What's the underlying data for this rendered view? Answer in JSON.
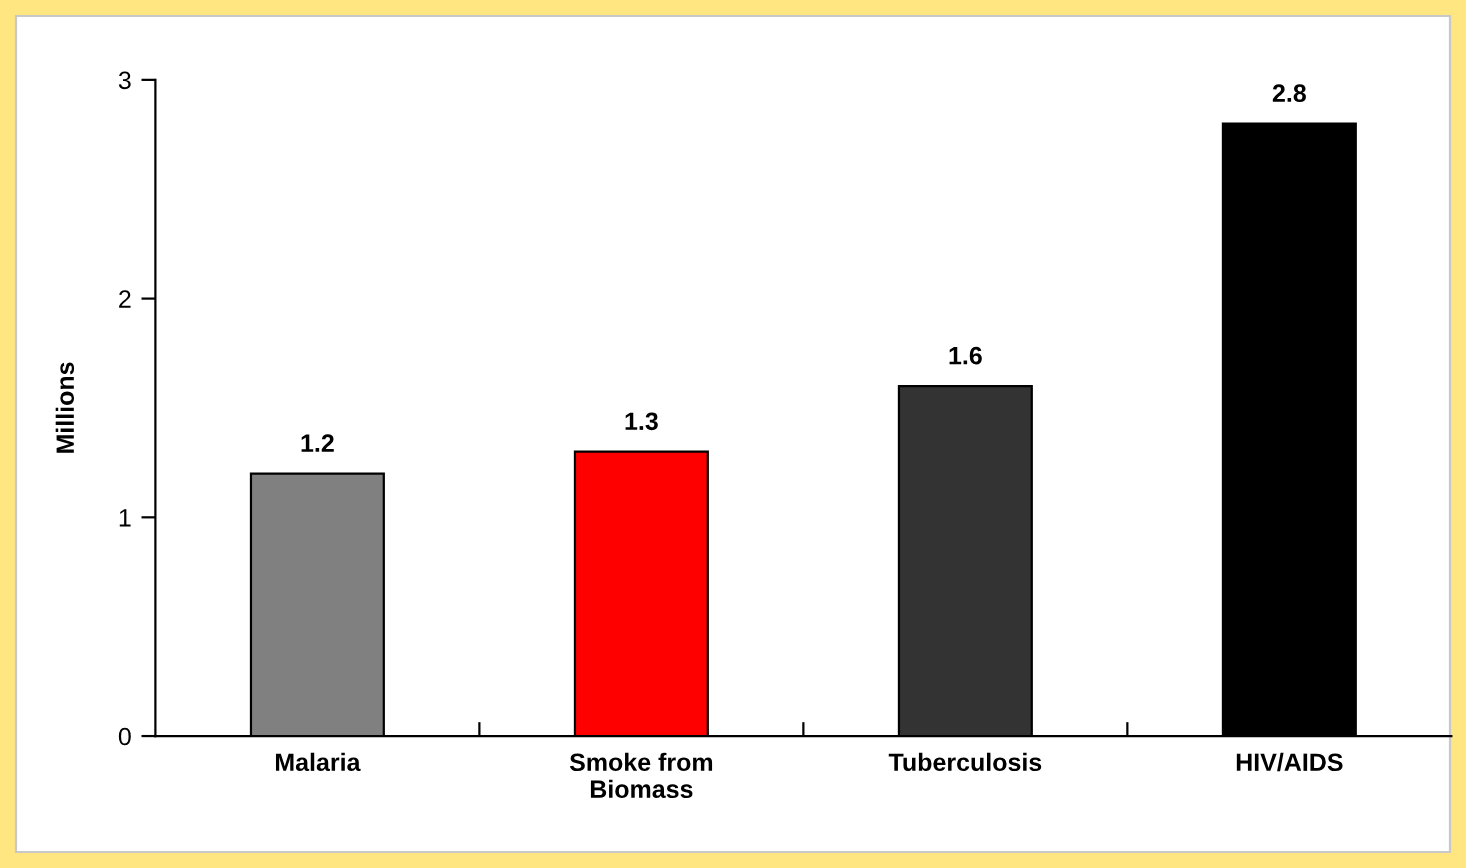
{
  "chart_data": {
    "type": "bar",
    "ylabel": "Millions",
    "categories": [
      "Malaria",
      "Smoke from\nBiomass",
      "Tuberculosis",
      "HIV/AIDS"
    ],
    "values": [
      1.2,
      1.3,
      1.6,
      2.8
    ],
    "colors": [
      "#808080",
      "#ff0000",
      "#333333",
      "#000000"
    ],
    "ylim": [
      0,
      3
    ],
    "yticks": [
      0,
      1,
      2,
      3
    ],
    "grid": false,
    "data_labels": true
  }
}
